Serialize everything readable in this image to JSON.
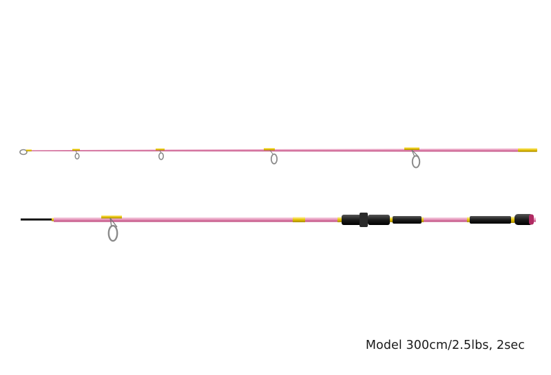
{
  "caption": "Model 300cm/2.5lbs, 2sec",
  "colors": {
    "blank": "#e8a0c0",
    "blank_edge": "#b83b73",
    "blank_highlight": "#f7d3e4",
    "gold": "#e6c200",
    "gold_dark": "#a88a00",
    "guide_ring": "#8a8a8a",
    "handle": "#1c1c1c",
    "tip": "#111111"
  },
  "items": {
    "tip_section": "tip-section",
    "butt_section": "butt-section"
  }
}
